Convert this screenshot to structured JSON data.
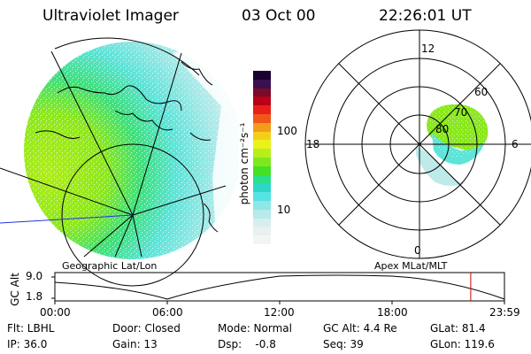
{
  "header": {
    "title": "Ultraviolet Imager",
    "date": "03 Oct 00",
    "time": "22:26:01 UT"
  },
  "left_panel": {
    "label": "Geographic Lat/Lon"
  },
  "right_panel": {
    "label": "Apex MLat/MLT",
    "mlt_labels": {
      "top": "12",
      "left": "18",
      "right": "6",
      "bottom": "0"
    },
    "lat_labels": [
      "60",
      "70",
      "80"
    ]
  },
  "colorbar": {
    "unit_label": "photon cm⁻²s⁻¹",
    "ticks": [
      "100",
      "10"
    ],
    "colors": [
      "#1a0033",
      "#3b1050",
      "#7a0a2a",
      "#b80016",
      "#e8201a",
      "#f2561a",
      "#f59c1a",
      "#f3cf1a",
      "#eaf21a",
      "#b8ee1a",
      "#7ee81c",
      "#44e024",
      "#2adf8a",
      "#2cd7c9",
      "#55e4e4",
      "#8fe7e7",
      "#b7eaea",
      "#d6eeee",
      "#e8f0f0",
      "#f3f5f5"
    ]
  },
  "timeline": {
    "axis_label": "GC Alt",
    "y_ticks": [
      "9.0",
      "1.8"
    ],
    "x_ticks": [
      "00:00",
      "06:00",
      "12:00",
      "18:00",
      "23:59"
    ],
    "current_fraction": 0.925,
    "marker_color": "#d00000"
  },
  "status": {
    "row1": {
      "flt": "Flt: LBHL",
      "door": "Door: Closed",
      "mode": "Mode: Normal",
      "gc_alt": "GC Alt: 4.4 Re",
      "glat": "GLat: 81.4"
    },
    "row2": {
      "ip": "IP: 36.0",
      "gain": "Gain: 13",
      "dsp": "Dsp:    -0.8",
      "seq": "Seq: 39",
      "glon": "GLon: 119.6"
    }
  }
}
